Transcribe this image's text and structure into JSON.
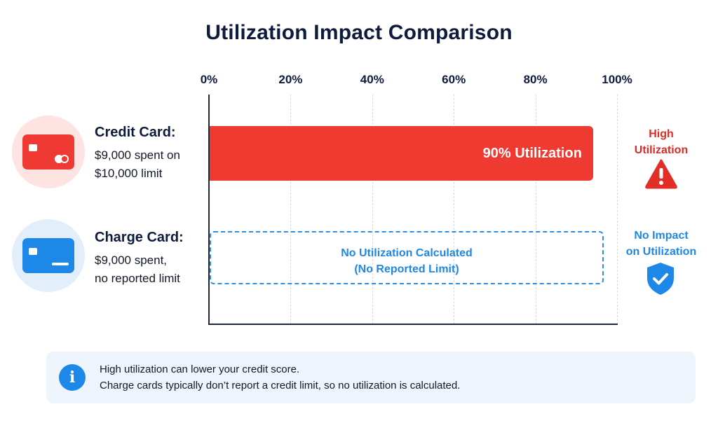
{
  "chart_data": {
    "type": "bar",
    "orientation": "horizontal",
    "title": "Utilization Impact Comparison",
    "xlim": [
      0,
      100
    ],
    "x_ticks": [
      "0%",
      "20%",
      "40%",
      "60%",
      "80%",
      "100%"
    ],
    "grid": true,
    "categories": [
      "Credit Card",
      "Charge Card"
    ],
    "values": [
      90,
      null
    ],
    "bar_labels": [
      "90% Utilization",
      "No Utilization Calculated\n(No Reported Limit)"
    ],
    "annotations": [
      "High Utilization",
      "No Impact on Utilization"
    ]
  },
  "rows": [
    {
      "heading": "Credit Card:",
      "desc1": "$9,000 spent on",
      "desc2": "$10,000 limit",
      "bar_label": "90% Utilization",
      "status1": "High",
      "status2": "Utilization",
      "icon": "credit-card-icon",
      "status_icon": "warning-triangle-icon",
      "color": "#ef3a32"
    },
    {
      "heading": "Charge Card:",
      "desc1": "$9,000 spent,",
      "desc2": "no reported limit",
      "bar_label1": "No Utilization Calculated",
      "bar_label2": "(No Reported Limit)",
      "status1": "No Impact",
      "status2": "on Utilization",
      "icon": "charge-card-icon",
      "status_icon": "shield-check-icon",
      "color": "#1e88e8"
    }
  ],
  "info": {
    "icon": "info-icon",
    "line1": "High utilization can lower your credit score.",
    "line2": "Charge cards typically don’t report a credit limit, so no utilization is calculated."
  }
}
